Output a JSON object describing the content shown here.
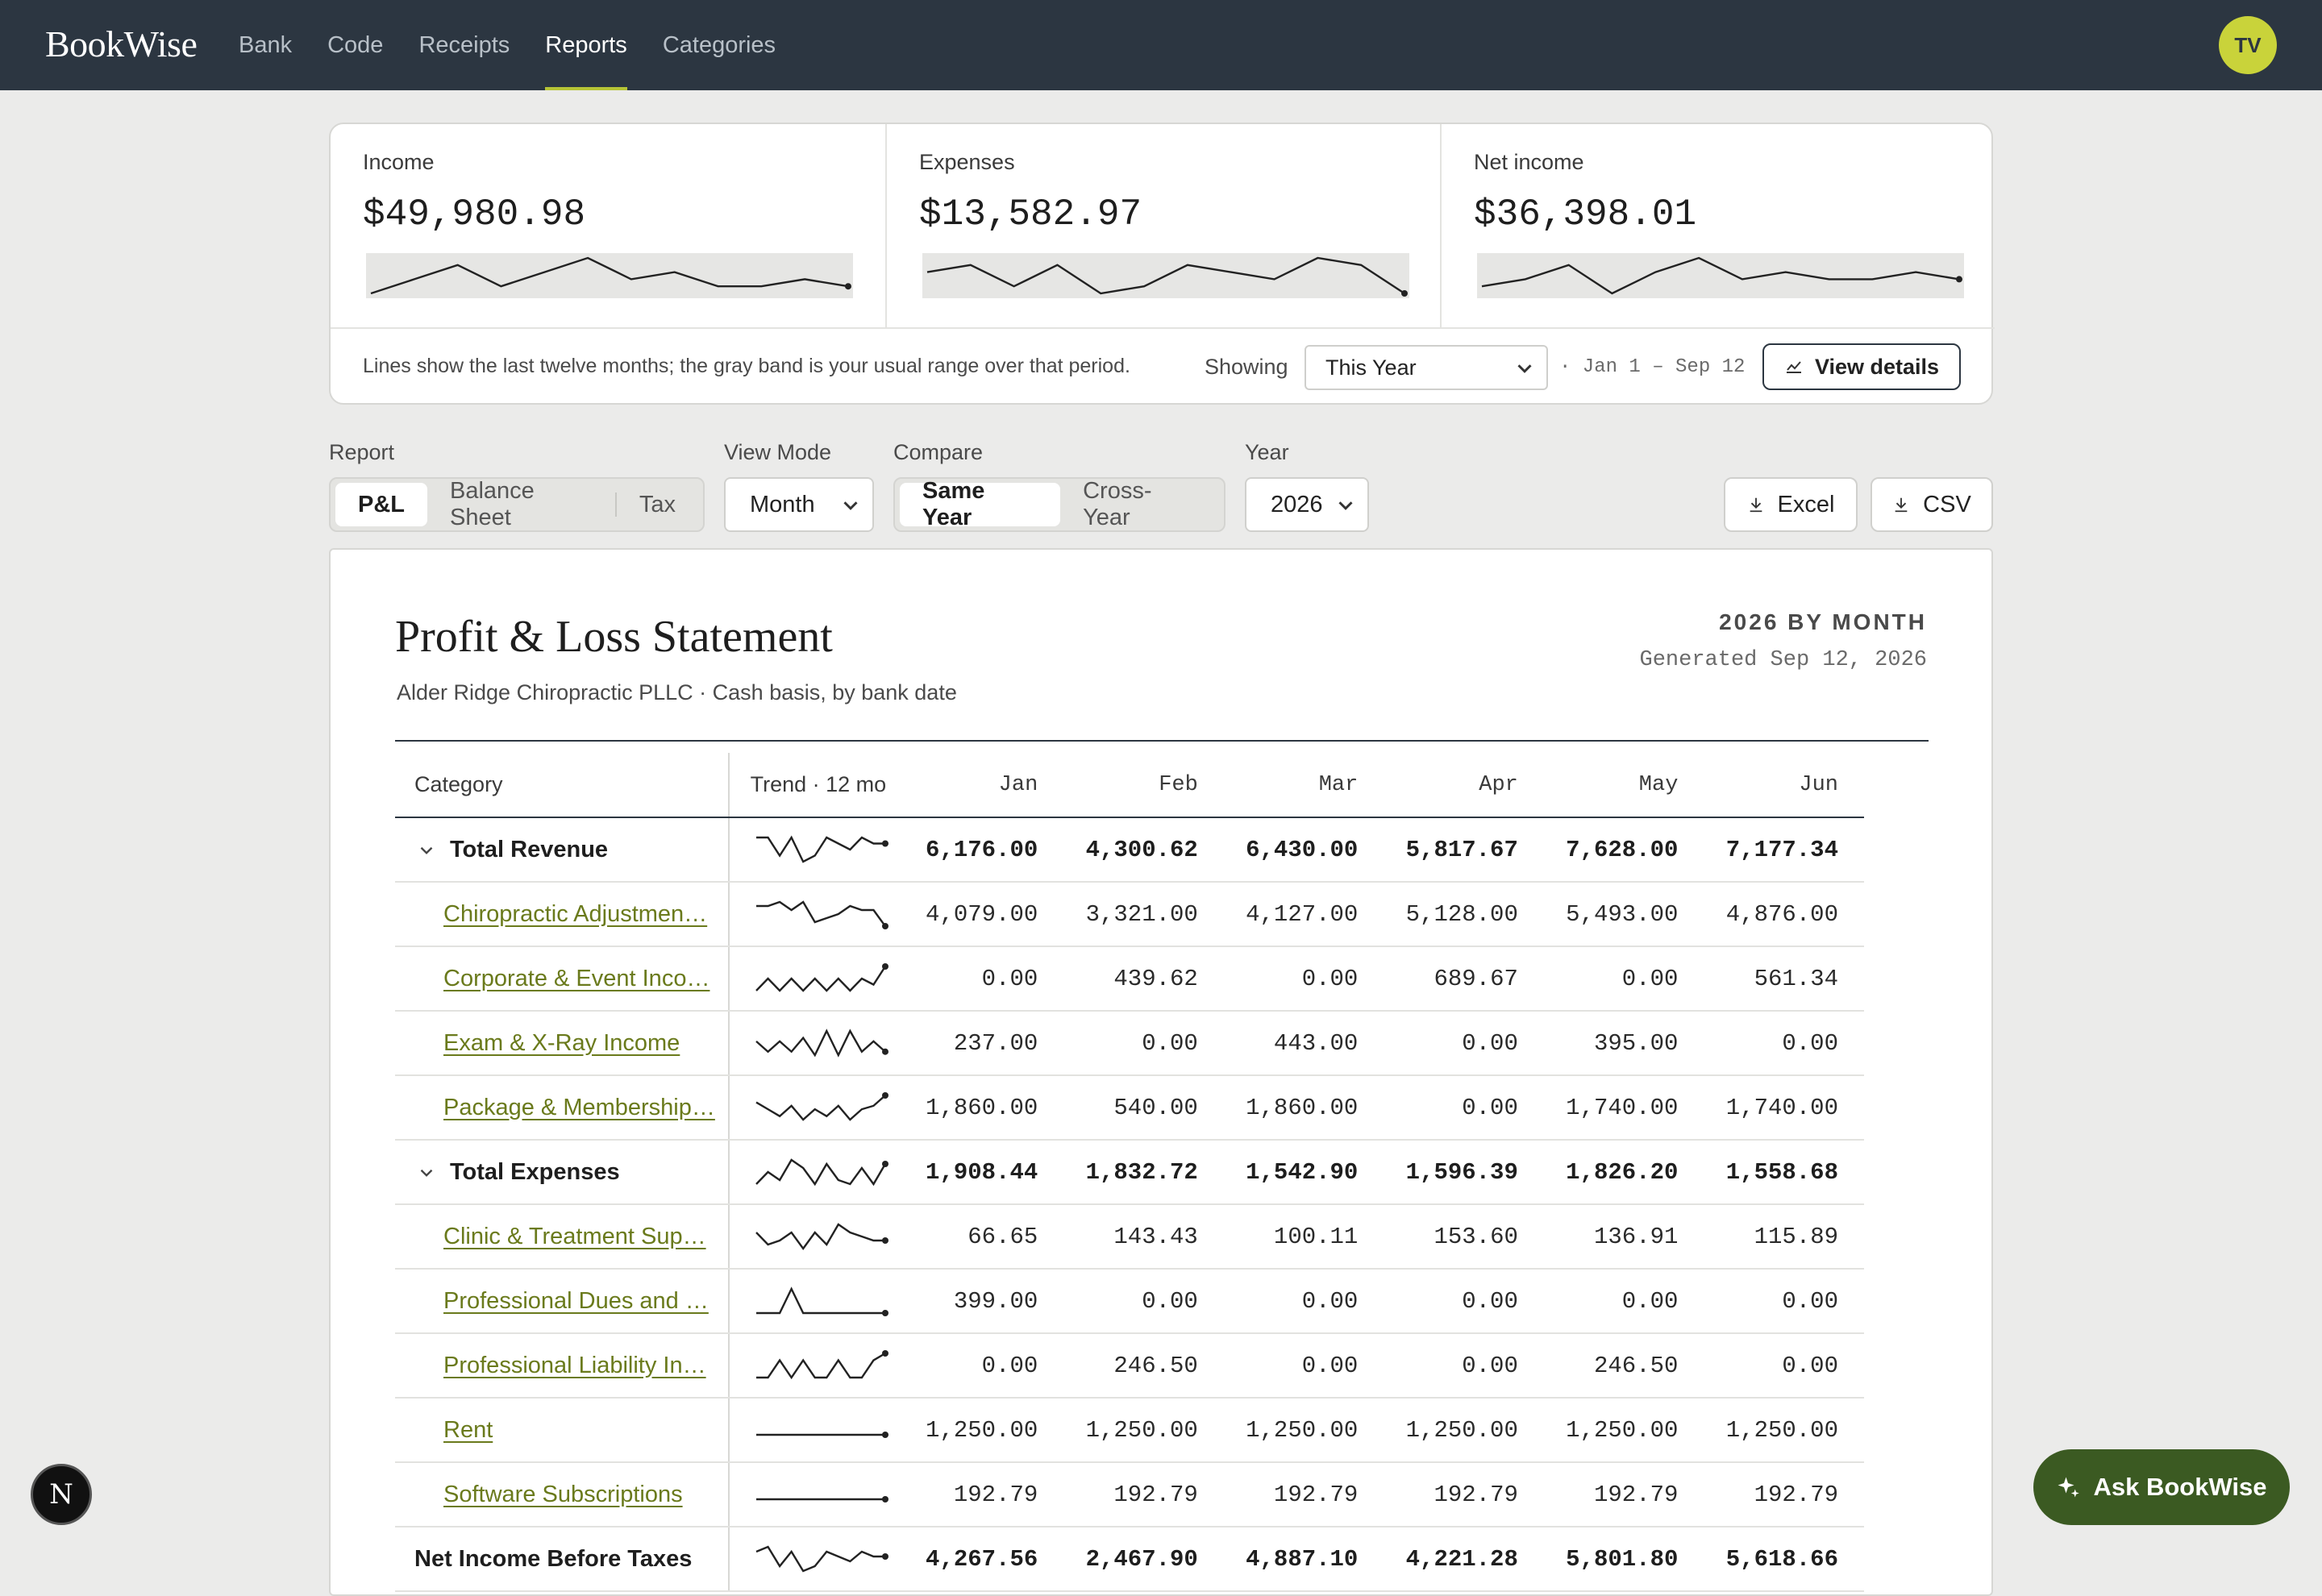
{
  "app": {
    "logo": "BookWise",
    "user_initials": "TV"
  },
  "nav": {
    "items": [
      "Bank",
      "Code",
      "Receipts",
      "Reports",
      "Categories"
    ],
    "active": "Reports"
  },
  "summary": {
    "kpis": [
      {
        "label": "Income",
        "value": "$49,980.98",
        "trend": [
          5,
          7,
          9,
          6,
          8,
          10,
          7,
          8,
          6,
          6,
          7,
          6
        ]
      },
      {
        "label": "Expenses",
        "value": "$13,582.97",
        "trend": [
          5,
          6,
          3,
          6,
          2,
          3,
          6,
          5,
          4,
          7,
          6,
          2
        ]
      },
      {
        "label": "Net income",
        "value": "$36,398.01",
        "trend": [
          5,
          6,
          8,
          4,
          7,
          9,
          6,
          7,
          6,
          6,
          7,
          6
        ]
      }
    ],
    "note": "Lines show the last twelve months; the gray band is your usual range over that period.",
    "showing_label": "Showing",
    "period": "This Year",
    "range": "· Jan 1 – Sep 12",
    "view_details": "View details"
  },
  "controls": {
    "report_label": "Report",
    "report_options": [
      "P&L",
      "Balance Sheet",
      "Tax"
    ],
    "report_active": "P&L",
    "view_mode_label": "View Mode",
    "view_mode": "Month",
    "compare_label": "Compare",
    "compare_options": [
      "Same Year",
      "Cross-Year"
    ],
    "compare_active": "Same Year",
    "year_label": "Year",
    "year": "2026",
    "excel": "Excel",
    "csv": "CSV"
  },
  "report": {
    "title": "Profit & Loss Statement",
    "subtitle": "Alder Ridge Chiropractic PLLC · Cash basis, by bank date",
    "period": "2026 BY MONTH",
    "generated": "Generated Sep 12, 2026",
    "col_category": "Category",
    "col_trend": "Trend · 12 mo",
    "months": [
      "Jan",
      "Feb",
      "Mar",
      "Apr",
      "May",
      "Jun"
    ],
    "rows": [
      {
        "type": "total",
        "name": "Total Revenue",
        "values": [
          "6,176.00",
          "4,300.62",
          "6,430.00",
          "5,817.67",
          "7,628.00",
          "7,177.34"
        ],
        "spark": [
          6,
          6,
          3,
          6,
          2,
          3,
          6,
          5,
          4,
          6,
          5,
          5
        ]
      },
      {
        "type": "line",
        "name": "Chiropractic Adjustmen…",
        "values": [
          "4,079.00",
          "3,321.00",
          "4,127.00",
          "5,128.00",
          "5,493.00",
          "4,876.00"
        ],
        "spark": [
          6,
          6,
          7,
          5,
          7,
          2,
          3,
          4,
          6,
          5,
          5,
          1
        ]
      },
      {
        "type": "line",
        "name": "Corporate & Event Inco…",
        "values": [
          "0.00",
          "439.62",
          "0.00",
          "689.67",
          "0.00",
          "561.34"
        ],
        "spark": [
          1,
          5,
          1,
          5,
          1,
          5,
          1,
          5,
          1,
          5,
          3,
          9
        ]
      },
      {
        "type": "line",
        "name": "Exam & X-Ray Income",
        "values": [
          "237.00",
          "0.00",
          "443.00",
          "0.00",
          "395.00",
          "0.00"
        ],
        "spark": [
          5,
          2,
          5,
          2,
          6,
          1,
          8,
          1,
          8,
          2,
          5,
          2
        ]
      },
      {
        "type": "line",
        "name": "Package & Membership…",
        "values": [
          "1,860.00",
          "540.00",
          "1,860.00",
          "0.00",
          "1,740.00",
          "1,740.00"
        ],
        "spark": [
          7,
          5,
          3,
          6,
          2,
          5,
          3,
          6,
          2,
          5,
          6,
          9
        ]
      },
      {
        "type": "total",
        "name": "Total Expenses",
        "values": [
          "1,908.44",
          "1,832.72",
          "1,542.90",
          "1,596.39",
          "1,826.20",
          "1,558.68"
        ],
        "spark": [
          2,
          5,
          3,
          8,
          6,
          2,
          7,
          3,
          2,
          6,
          2,
          7
        ]
      },
      {
        "type": "line",
        "name": "Clinic & Treatment Sup…",
        "values": [
          "66.65",
          "143.43",
          "100.11",
          "153.60",
          "136.91",
          "115.89"
        ],
        "spark": [
          6,
          3,
          4,
          6,
          2,
          6,
          3,
          8,
          6,
          5,
          4,
          4
        ]
      },
      {
        "type": "line",
        "name": "Professional Dues and …",
        "values": [
          "399.00",
          "0.00",
          "0.00",
          "0.00",
          "0.00",
          "0.00"
        ],
        "spark": [
          1,
          1,
          1,
          8,
          1,
          1,
          1,
          1,
          1,
          1,
          1,
          1
        ]
      },
      {
        "type": "line",
        "name": "Professional Liability In…",
        "values": [
          "0.00",
          "246.50",
          "0.00",
          "0.00",
          "246.50",
          "0.00"
        ],
        "spark": [
          1,
          1,
          6,
          1,
          6,
          1,
          1,
          6,
          1,
          1,
          6,
          8
        ]
      },
      {
        "type": "line",
        "name": "Rent",
        "values": [
          "1,250.00",
          "1,250.00",
          "1,250.00",
          "1,250.00",
          "1,250.00",
          "1,250.00"
        ],
        "spark": [
          2,
          2,
          2,
          2,
          2,
          2,
          2,
          2,
          2,
          2,
          2,
          2
        ]
      },
      {
        "type": "line",
        "name": "Software Subscriptions",
        "values": [
          "192.79",
          "192.79",
          "192.79",
          "192.79",
          "192.79",
          "192.79"
        ],
        "spark": [
          2,
          2,
          2,
          2,
          2,
          2,
          2,
          2,
          2,
          2,
          2,
          2
        ]
      },
      {
        "type": "net",
        "name": "Net Income Before Taxes",
        "values": [
          "4,267.56",
          "2,467.90",
          "4,887.10",
          "4,221.28",
          "5,801.80",
          "5,618.66"
        ],
        "spark": [
          6,
          7,
          3,
          6,
          2,
          3,
          6,
          5,
          4,
          6,
          5,
          5
        ]
      }
    ]
  },
  "ask": {
    "label": "Ask BookWise"
  },
  "dev_badge": "N"
}
